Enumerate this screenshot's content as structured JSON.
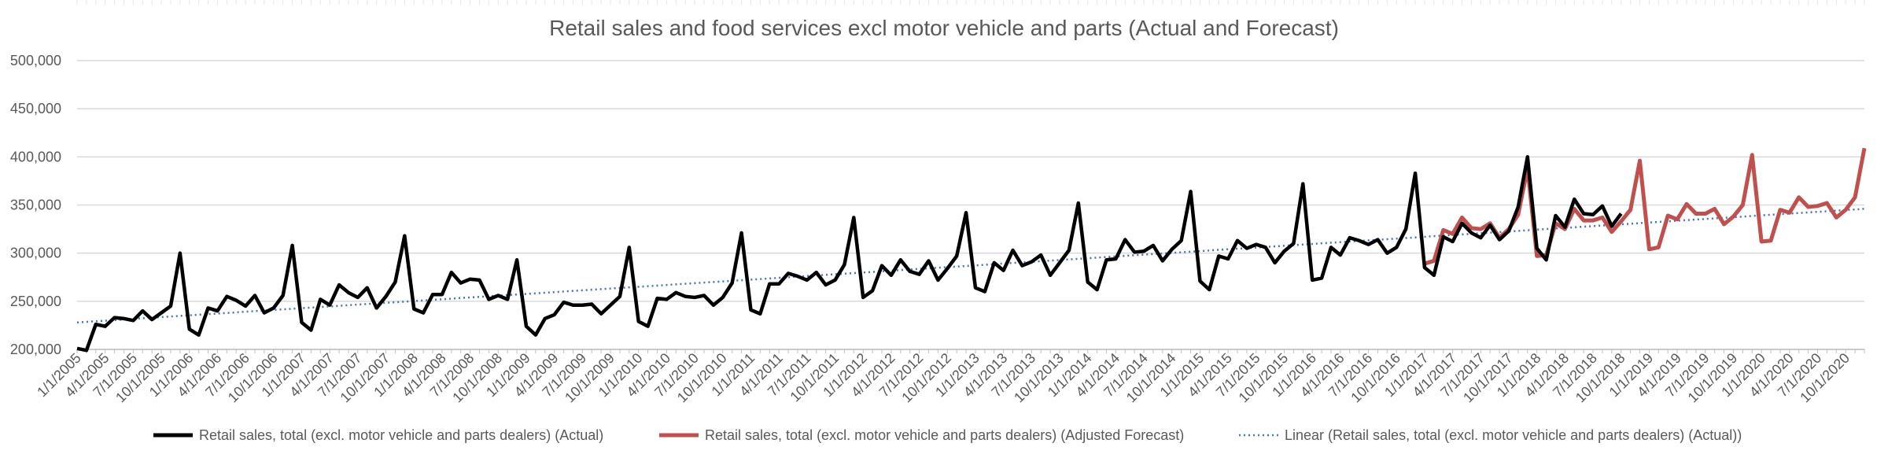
{
  "chart_data": {
    "type": "line",
    "title": "Retail sales and food services excl motor vehicle and parts (Actual and Forecast)",
    "xlabel": "",
    "ylabel": "",
    "ylim": [
      200000,
      500000
    ],
    "yticks": [
      200000,
      250000,
      300000,
      350000,
      400000,
      450000,
      500000
    ],
    "ytick_labels": [
      "200,000",
      "250,000",
      "300,000",
      "350,000",
      "400,000",
      "450,000",
      "500,000"
    ],
    "grid": true,
    "legend_position": "bottom",
    "x_start": "2005-01",
    "x_end": "2020-12",
    "x_tick_labels": [
      "1/1/2005",
      "4/1/2005",
      "7/1/2005",
      "10/1/2005",
      "1/1/2006",
      "4/1/2006",
      "7/1/2006",
      "10/1/2006",
      "1/1/2007",
      "4/1/2007",
      "7/1/2007",
      "10/1/2007",
      "1/1/2008",
      "4/1/2008",
      "7/1/2008",
      "10/1/2008",
      "1/1/2009",
      "4/1/2009",
      "7/1/2009",
      "10/1/2009",
      "1/1/2010",
      "4/1/2010",
      "7/1/2010",
      "10/1/2010",
      "1/1/2011",
      "4/1/2011",
      "7/1/2011",
      "10/1/2011",
      "1/1/2012",
      "4/1/2012",
      "7/1/2012",
      "10/1/2012",
      "1/1/2013",
      "4/1/2013",
      "7/1/2013",
      "10/1/2013",
      "1/1/2014",
      "4/1/2014",
      "7/1/2014",
      "10/1/2014",
      "1/1/2015",
      "4/1/2015",
      "7/1/2015",
      "10/1/2015",
      "1/1/2016",
      "4/1/2016",
      "7/1/2016",
      "10/1/2016",
      "1/1/2017",
      "4/1/2017",
      "7/1/2017",
      "10/1/2017",
      "1/1/2018",
      "4/1/2018",
      "7/1/2018",
      "10/1/2018",
      "1/1/2019",
      "4/1/2019",
      "7/1/2019",
      "10/1/2019",
      "1/1/2020",
      "4/1/2020",
      "7/1/2020",
      "10/1/2020"
    ],
    "series": [
      {
        "name": "Retail sales, total (excl. motor vehicle and parts dealers) (Actual)",
        "color": "#000000",
        "style": "solid",
        "start": "2005-01",
        "values": [
          201000,
          199000,
          226000,
          224000,
          233000,
          232000,
          230000,
          240000,
          231000,
          238000,
          245000,
          300000,
          221000,
          215000,
          243000,
          240000,
          255000,
          251000,
          245000,
          256000,
          238000,
          243000,
          256000,
          308000,
          228000,
          220000,
          252000,
          246000,
          267000,
          259000,
          254000,
          264000,
          243000,
          255000,
          270000,
          318000,
          242000,
          238000,
          257000,
          257000,
          280000,
          269000,
          273000,
          272000,
          252000,
          256000,
          252000,
          293000,
          224000,
          215000,
          232000,
          236000,
          249000,
          246000,
          246000,
          247000,
          237000,
          246000,
          255000,
          306000,
          229000,
          224000,
          253000,
          252000,
          259000,
          255000,
          254000,
          256000,
          246000,
          254000,
          269000,
          321000,
          241000,
          237000,
          268000,
          268000,
          279000,
          276000,
          272000,
          280000,
          267000,
          272000,
          288000,
          337000,
          254000,
          261000,
          287000,
          277000,
          293000,
          281000,
          278000,
          292000,
          272000,
          284000,
          297000,
          342000,
          264000,
          260000,
          290000,
          282000,
          303000,
          287000,
          291000,
          298000,
          277000,
          290000,
          303000,
          352000,
          270000,
          262000,
          293000,
          294000,
          314000,
          301000,
          302000,
          308000,
          292000,
          304000,
          313000,
          364000,
          271000,
          262000,
          297000,
          294000,
          313000,
          305000,
          309000,
          306000,
          290000,
          302000,
          310000,
          372000,
          272000,
          274000,
          306000,
          298000,
          316000,
          313000,
          309000,
          314000,
          300000,
          306000,
          325000,
          383000,
          285000,
          277000,
          317000,
          312000,
          331000,
          321000,
          316000,
          329000,
          314000,
          323000,
          348000,
          400000,
          305000,
          293000,
          339000,
          327000,
          356000,
          341000,
          340000,
          349000,
          328000,
          341000
        ]
      },
      {
        "name": "Retail sales, total (excl. motor vehicle and parts dealers) (Adjusted Forecast)",
        "color": "#c0504d",
        "style": "solid",
        "start": "2017-01",
        "values": [
          289000,
          292000,
          324000,
          320000,
          337000,
          326000,
          325000,
          331000,
          316000,
          325000,
          340000,
          388000,
          297000,
          298000,
          331000,
          325000,
          346000,
          334000,
          334000,
          337000,
          322000,
          333000,
          345000,
          396000,
          304000,
          306000,
          339000,
          335000,
          351000,
          341000,
          341000,
          346000,
          330000,
          338000,
          350000,
          402000,
          312000,
          313000,
          345000,
          342000,
          358000,
          348000,
          349000,
          352000,
          337000,
          345000,
          358000,
          409000
        ]
      }
    ],
    "trendline": {
      "name": "Linear (Retail sales, total (excl. motor vehicle and parts dealers) (Actual))",
      "color": "#4472c4",
      "style": "dotted",
      "start_value": 228000,
      "end_value": 346000
    }
  }
}
